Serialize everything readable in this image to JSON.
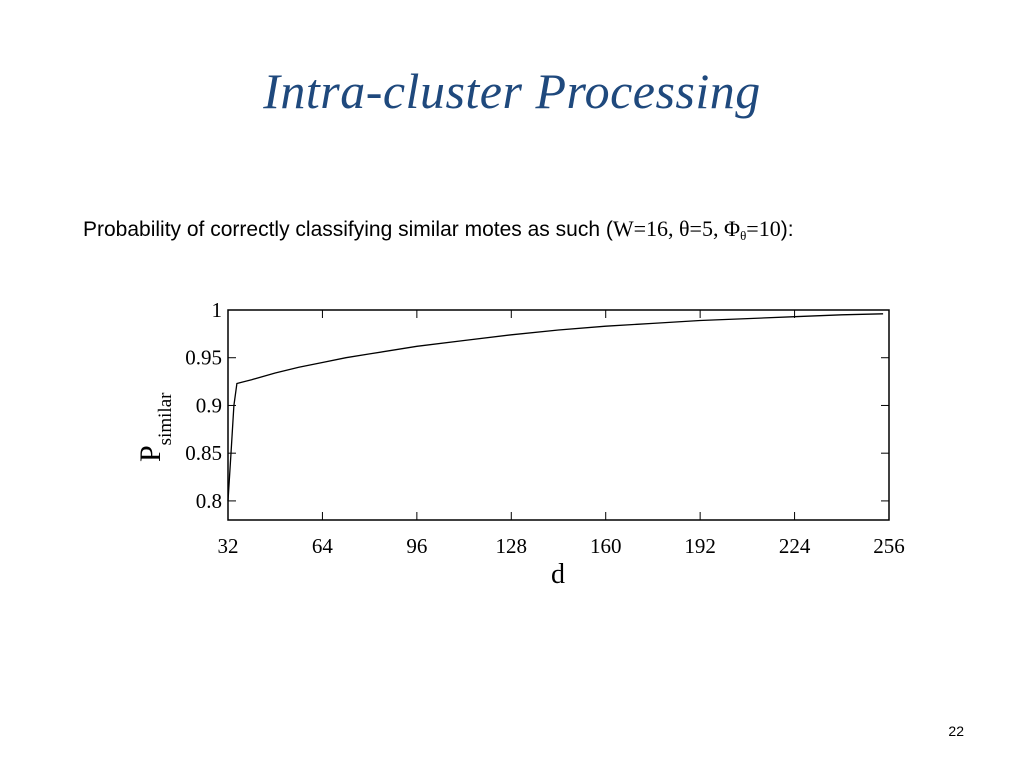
{
  "slide": {
    "title": "Intra-cluster Processing",
    "subtitle_text": "Probability of correctly classifying similar motes as such (",
    "subtitle_params": {
      "w": "W=16, ",
      "theta": "θ=5, ",
      "phi": "Φ",
      "phi_sub": "θ",
      "phi_val": "=10"
    },
    "subtitle_end": "):",
    "page_number": "22"
  },
  "chart_data": {
    "type": "line",
    "title": "",
    "xlabel": "d",
    "ylabel": "P",
    "ylabel_sub": "similar",
    "xlim": [
      32,
      256
    ],
    "ylim": [
      0.78,
      1.0
    ],
    "xticks": [
      32,
      64,
      96,
      128,
      160,
      192,
      224,
      256
    ],
    "yticks": [
      0.8,
      0.85,
      0.9,
      0.95,
      1
    ],
    "ytick_labels": [
      "0.8",
      "0.85",
      "0.9",
      "0.95",
      "1"
    ],
    "grid": false,
    "series": [
      {
        "x": [
          32,
          33,
          34,
          35,
          40,
          48,
          56,
          64,
          72,
          80,
          96,
          112,
          128,
          144,
          160,
          176,
          192,
          208,
          224,
          240,
          254
        ],
        "y": [
          0.8,
          0.85,
          0.9,
          0.923,
          0.927,
          0.934,
          0.94,
          0.945,
          0.95,
          0.954,
          0.962,
          0.968,
          0.974,
          0.979,
          0.983,
          0.986,
          0.989,
          0.991,
          0.993,
          0.995,
          0.996
        ]
      }
    ]
  }
}
